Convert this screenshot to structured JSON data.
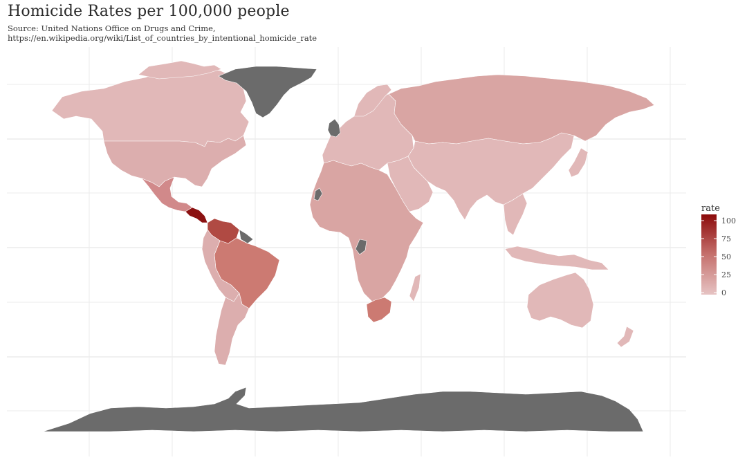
{
  "title": "Homicide Rates per 100,000 people",
  "subtitle_line1": "Source: United Nations Office on Drugs and Crime,",
  "subtitle_line2": "https://en.wikipedia.org/wiki/List_of_countries_by_intentional_homicide_rate",
  "legend": {
    "title": "rate",
    "ticks": [
      "100",
      "75",
      "50",
      "25",
      "0"
    ],
    "gradient_top": "#8b0a0a",
    "gradient_bottom": "#e6c3c3"
  },
  "colors": {
    "background": "#ffffff",
    "grid": "#ebebeb",
    "no_data": "#6b6b6b",
    "very_low": "#e1b8b8",
    "low": "#dcaeae",
    "low_mid": "#d9a5a3",
    "mid": "#d1898a",
    "high_mid": "#cc7a72",
    "high": "#b04a43",
    "very_high": "#8b1111",
    "border": "#ffffff"
  },
  "regions": [
    {
      "name": "Greenland",
      "rate_class": "no_data"
    },
    {
      "name": "Antarctica",
      "rate_class": "no_data"
    },
    {
      "name": "Canada",
      "rate_class": "very_low"
    },
    {
      "name": "United States",
      "rate_class": "low"
    },
    {
      "name": "Mexico",
      "rate_class": "mid"
    },
    {
      "name": "Central America",
      "rate_class": "very_high"
    },
    {
      "name": "Venezuela",
      "rate_class": "high"
    },
    {
      "name": "Brazil",
      "rate_class": "high_mid"
    },
    {
      "name": "South America (south)",
      "rate_class": "low"
    },
    {
      "name": "Europe",
      "rate_class": "very_low"
    },
    {
      "name": "United Kingdom",
      "rate_class": "no_data"
    },
    {
      "name": "Russia",
      "rate_class": "low_mid"
    },
    {
      "name": "Asia",
      "rate_class": "very_low"
    },
    {
      "name": "Africa",
      "rate_class": "low_mid"
    },
    {
      "name": "South Africa",
      "rate_class": "high_mid"
    },
    {
      "name": "Australia",
      "rate_class": "very_low"
    }
  ]
}
